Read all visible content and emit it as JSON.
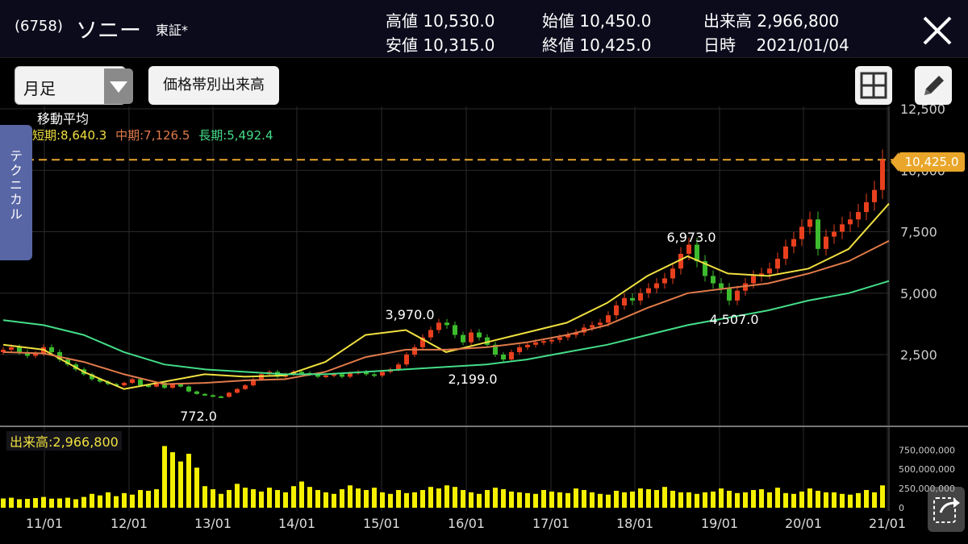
{
  "header": {
    "code": "(6758)",
    "name": "ソニー",
    "market": "東証*",
    "high_label": "高値",
    "high": "10,530.0",
    "low_label": "安値",
    "low": "10,315.0",
    "open_label": "始値",
    "open": "10,450.0",
    "close_label": "終値",
    "close": "10,425.0",
    "volume_label": "出来高",
    "volume": "2,966,800",
    "date_label": "日時",
    "date": "2021/01/04"
  },
  "toolbar": {
    "period": "月足",
    "volume_profile": "価格帯別出来高"
  },
  "technical_tab": "テクニカル",
  "moving_average": {
    "title": "移動平均",
    "short": "短期:8,640.3",
    "mid": "中期:7,126.5",
    "long": "長期:5,492.4"
  },
  "volume_panel": {
    "label": "出来高:2,966,800"
  },
  "colors": {
    "up": "#e8401e",
    "down": "#3dbb2e",
    "ma_short": "#f0e040",
    "ma_mid": "#e07a4a",
    "ma_long": "#44dd88",
    "volume": "#f5f000",
    "current_price": "#e9a62a",
    "tab": "#5866a6"
  },
  "icons": {
    "close": "close-icon",
    "period_dropdown": "chevron-down-icon",
    "layout": "grid-icon",
    "draw": "pencil-icon",
    "expand": "expand-icon"
  },
  "chart_data": {
    "type": "candlestick",
    "price_axis": {
      "ticks": [
        "2,500",
        "5,000",
        "7,500",
        "10,000",
        "12,500"
      ],
      "ylim": [
        0,
        12500
      ]
    },
    "volume_axis": {
      "ticks": [
        "0",
        "250,000,000",
        "500,000,000",
        "750,000,000"
      ],
      "ylim": [
        0,
        900000000
      ]
    },
    "x_ticks": [
      "11/01",
      "12/01",
      "13/01",
      "14/01",
      "15/01",
      "16/01",
      "17/01",
      "18/01",
      "19/01",
      "20/01",
      "21/01"
    ],
    "current_price": "10,425.0",
    "annotations": [
      {
        "text": "772.0",
        "x": "12/11",
        "value": 772
      },
      {
        "text": "3,970.0",
        "x": "15/05",
        "value": 3970
      },
      {
        "text": "2,199.0",
        "x": "16/02",
        "value": 2199
      },
      {
        "text": "6,973.0",
        "x": "18/05",
        "value": 6973
      },
      {
        "text": "4,507.0",
        "x": "18/12",
        "value": 4507
      }
    ],
    "moving_averages": [
      {
        "name": "短期",
        "values": [
          2900,
          2700,
          1800,
          1100,
          1400,
          1700,
          1600,
          1650,
          2200,
          3300,
          3500,
          2600,
          3000,
          3400,
          3800,
          4600,
          5700,
          6500,
          5800,
          5700,
          6000,
          6800,
          8640
        ]
      },
      {
        "name": "中期",
        "values": [
          2600,
          2550,
          2200,
          1700,
          1300,
          1350,
          1450,
          1500,
          1800,
          2400,
          2700,
          2700,
          2800,
          3000,
          3300,
          3700,
          4400,
          5000,
          5200,
          5400,
          5800,
          6300,
          7126
        ]
      },
      {
        "name": "長期",
        "values": [
          3900,
          3700,
          3300,
          2600,
          2100,
          1900,
          1800,
          1700,
          1700,
          1800,
          1900,
          2000,
          2100,
          2300,
          2600,
          2900,
          3300,
          3700,
          4000,
          4300,
          4700,
          5000,
          5492
        ]
      }
    ],
    "closes": [
      2700,
      2800,
      2600,
      2450,
      2550,
      2800,
      2600,
      2300,
      2100,
      1900,
      1700,
      1500,
      1400,
      1300,
      1250,
      1350,
      1500,
      1250,
      1200,
      1350,
      1150,
      1300,
      1200,
      1000,
      900,
      850,
      800,
      780,
      950,
      1100,
      1250,
      1500,
      1700,
      1800,
      1600,
      1700,
      1800,
      1750,
      1700,
      1600,
      1650,
      1700,
      1600,
      1750,
      1800,
      1700,
      1650,
      1800,
      1900,
      2100,
      2500,
      2800,
      3200,
      3500,
      3800,
      3700,
      3300,
      3000,
      3400,
      3200,
      2900,
      2500,
      2300,
      2600,
      2800,
      2900,
      3000,
      3050,
      3100,
      3200,
      3300,
      3400,
      3600,
      3700,
      3800,
      4100,
      4500,
      4800,
      4700,
      5000,
      5200,
      5400,
      5600,
      6000,
      6600,
      6973,
      6300,
      5700,
      5400,
      5200,
      4700,
      5100,
      5400,
      5700,
      5800,
      6000,
      6400,
      6900,
      7200,
      7700,
      8000,
      6800,
      7300,
      7500,
      7800,
      8000,
      8300,
      8700,
      9200,
      10425
    ],
    "volumes": [
      120,
      130,
      110,
      115,
      125,
      140,
      118,
      120,
      130,
      110,
      140,
      180,
      160,
      200,
      150,
      190,
      170,
      230,
      220,
      240,
      800,
      720,
      600,
      700,
      520,
      280,
      240,
      180,
      230,
      310,
      260,
      240,
      210,
      260,
      230,
      200,
      280,
      340,
      270,
      230,
      200,
      180,
      240,
      290,
      250,
      230,
      260,
      200,
      180,
      230,
      190,
      200,
      230,
      270,
      250,
      290,
      270,
      230,
      200,
      180,
      230,
      260,
      240,
      210,
      200,
      190,
      180,
      230,
      210,
      200,
      190,
      250,
      230,
      200,
      180,
      170,
      220,
      200,
      210,
      250,
      240,
      230,
      270,
      220,
      200,
      200,
      180,
      200,
      210,
      250,
      220,
      190,
      200,
      230,
      240,
      200,
      260,
      190,
      180,
      210,
      250,
      220,
      200,
      200,
      180,
      170,
      190,
      230,
      200,
      290
    ]
  }
}
